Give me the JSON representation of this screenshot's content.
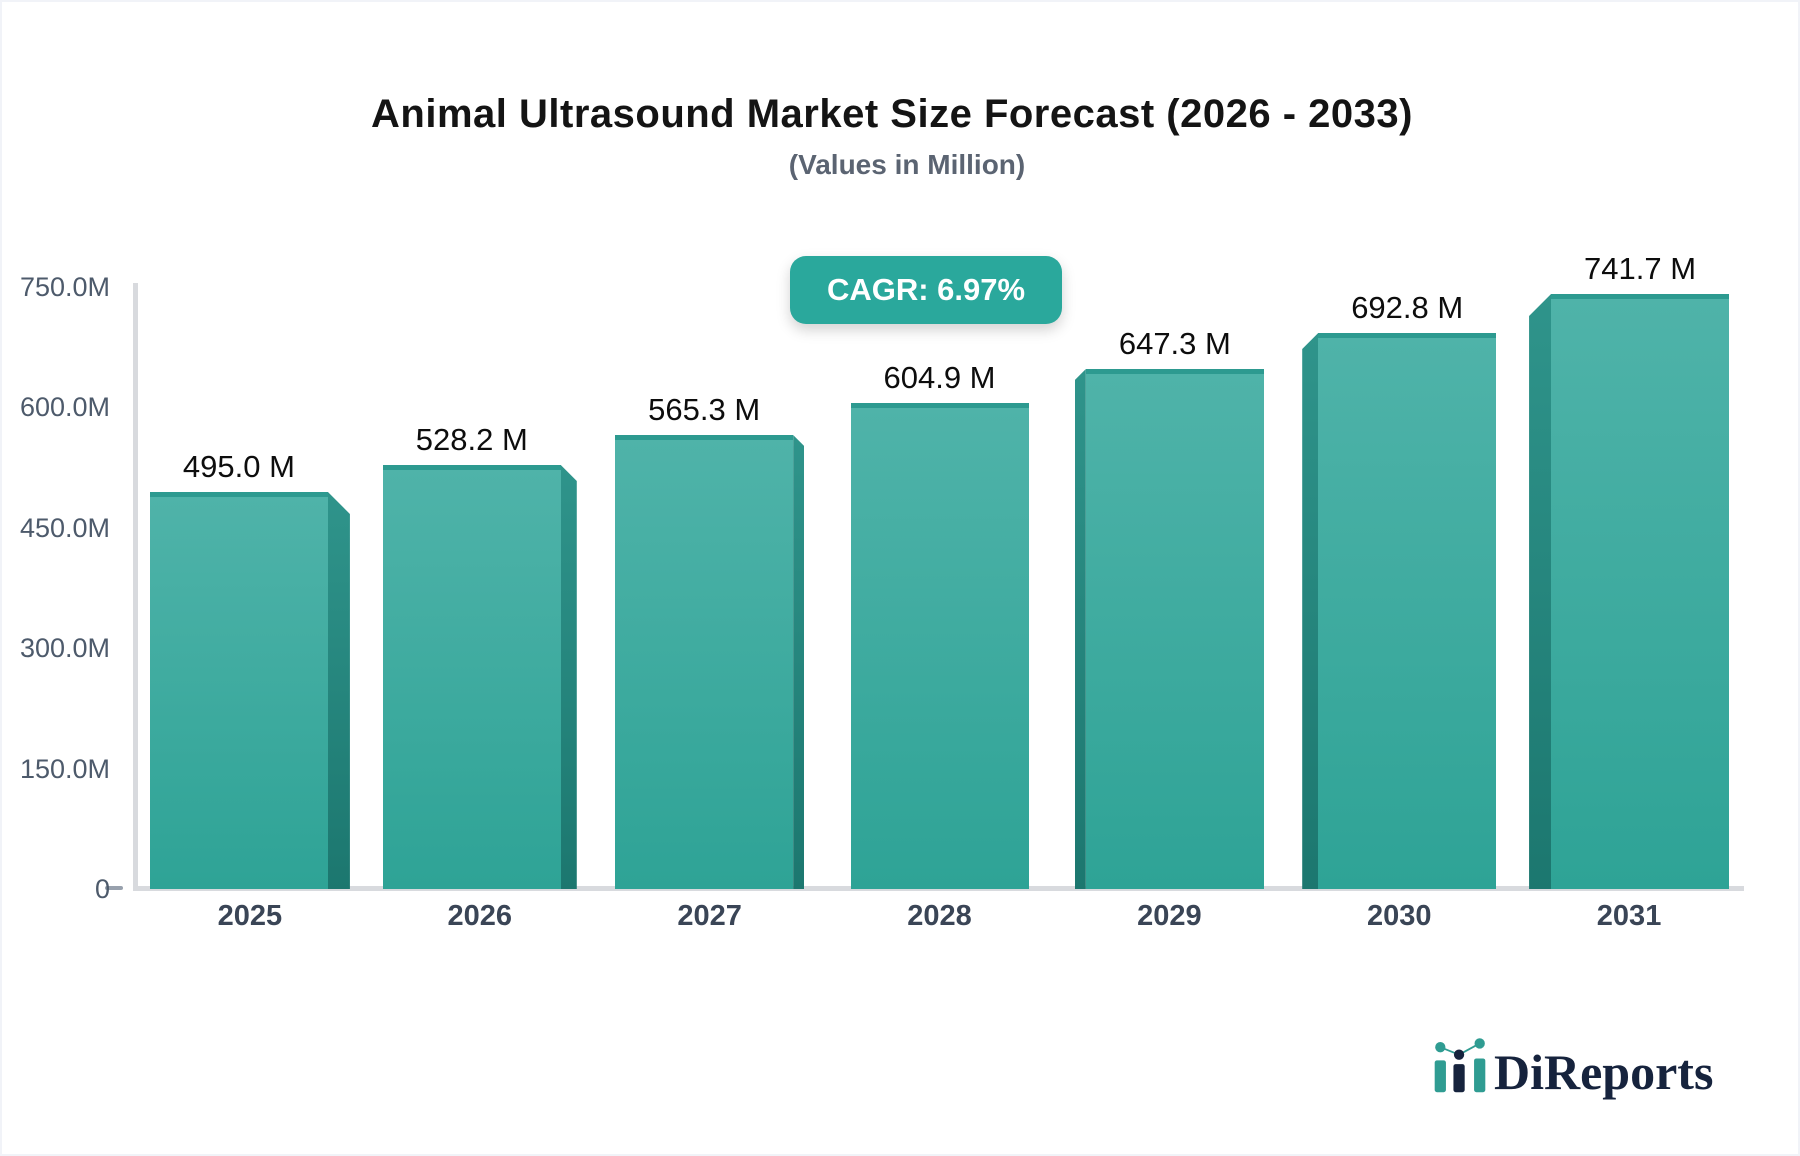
{
  "header": {
    "title": "Animal Ultrasound Market Size Forecast (2026 - 2033)",
    "subtitle": "(Values in Million)",
    "cagr_label": "CAGR: 6.97%"
  },
  "chart_data": {
    "type": "bar",
    "title": "Animal Ultrasound Market Size Forecast (2026 - 2033)",
    "subtitle": "(Values in Million)",
    "categories": [
      "2025",
      "2026",
      "2027",
      "2028",
      "2029",
      "2030",
      "2031"
    ],
    "values": [
      495.0,
      528.2,
      565.3,
      604.9,
      647.3,
      692.8,
      741.7
    ],
    "value_labels": [
      "495.0 M",
      "528.2 M",
      "565.3 M",
      "604.9 M",
      "647.3 M",
      "692.8 M",
      "741.7 M"
    ],
    "unit": "Million",
    "cagr": "6.97%",
    "y_ticks": [
      {
        "value": 750,
        "label": "750.0M"
      },
      {
        "value": 600,
        "label": "600.0M"
      },
      {
        "value": 450,
        "label": "450.0M"
      },
      {
        "value": 300,
        "label": "300.0M"
      },
      {
        "value": 150,
        "label": "150.0M"
      },
      {
        "value": 0,
        "label": "0"
      }
    ],
    "ylim": [
      0,
      750
    ],
    "grid": false,
    "legend": "none",
    "style": "3d-bars",
    "colors": {
      "bar_top": "#4fb3a9",
      "bar_bottom": "#2ea396",
      "bar_top_edge": "#2d9a90",
      "bar_side_top": "#2f948b",
      "bar_side_bottom": "#1c776f",
      "accent": "#2aa89c",
      "axis": "#d8dade"
    }
  },
  "branding": {
    "logo_text": "DiReports",
    "logo_navy": "#16233d",
    "logo_teal": "#2f9c92"
  }
}
